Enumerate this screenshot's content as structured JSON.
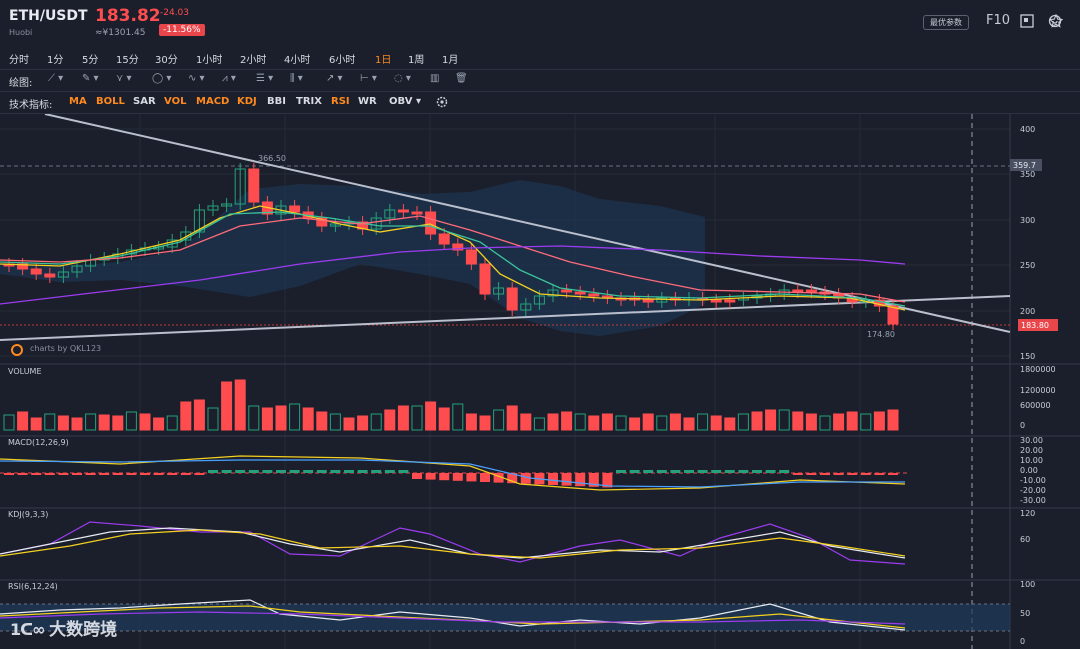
{
  "header": {
    "pair": "ETH/USDT",
    "exchange": "Huobi",
    "price": "183.82",
    "cny": "≈¥1301.45",
    "change": "-24.03",
    "change_pct": "-11.56%",
    "best_params": "最优参数",
    "f10": "F10"
  },
  "timeframes": [
    "分时",
    "1分",
    "5分",
    "15分",
    "30分",
    "1小时",
    "2小时",
    "4小时",
    "6小时",
    "1日",
    "1周",
    "1月"
  ],
  "active_timeframe": "1日",
  "drawing": {
    "label": "绘图:"
  },
  "indicators": {
    "label": "技术指标:",
    "items": [
      {
        "name": "MA",
        "color": "#ff8a1e"
      },
      {
        "name": "BOLL",
        "color": "#ff8a1e"
      },
      {
        "name": "SAR",
        "color": "#d8dbe3"
      },
      {
        "name": "VOL",
        "color": "#ff8a1e"
      },
      {
        "name": "MACD",
        "color": "#ff8a1e"
      },
      {
        "name": "KDJ",
        "color": "#ff8a1e"
      },
      {
        "name": "BBI",
        "color": "#d8dbe3"
      },
      {
        "name": "TRIX",
        "color": "#d8dbe3"
      },
      {
        "name": "RSI",
        "color": "#ff8a1e"
      },
      {
        "name": "WR",
        "color": "#d8dbe3"
      },
      {
        "name": "OBV",
        "color": "#d8dbe3"
      }
    ]
  },
  "main_chart": {
    "y_ticks": [
      "400",
      "350",
      "300",
      "250",
      "200",
      "150"
    ],
    "high_marker": "366.50",
    "low_marker": "174.80",
    "price_tag": "359.7",
    "current_tag": "183.80",
    "credit": "charts by QKL123"
  },
  "panels": {
    "volume": {
      "name": "VOLUME",
      "ticks": [
        "1800000",
        "1200000",
        "600000",
        "0"
      ]
    },
    "macd": {
      "name": "MACD(12,26,9)",
      "ticks": [
        "30.00",
        "20.00",
        "10.00",
        "0.00",
        "-10.00",
        "-20.00",
        "-30.00"
      ]
    },
    "kdj": {
      "name": "KDJ(9,3,3)",
      "ticks": [
        "120",
        "60"
      ]
    },
    "rsi": {
      "name": "RSI(6,12,24)",
      "ticks": [
        "100",
        "50",
        "0"
      ]
    }
  },
  "watermark": "大数跨境",
  "colors": {
    "up": "#26a17b",
    "down": "#ff4d4f",
    "accent": "#ff8a1e",
    "bg": "#1b1f2b"
  }
}
